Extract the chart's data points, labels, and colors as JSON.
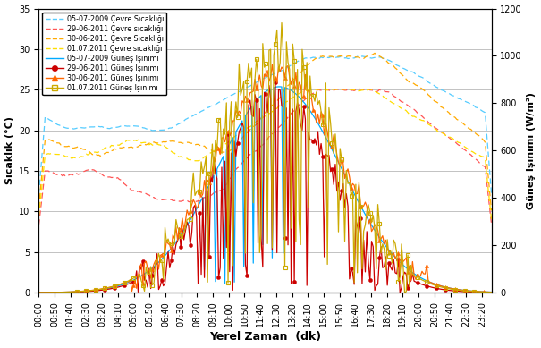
{
  "xlabel": "Yerel Zaman  (dk)",
  "ylabel_left": "Sıcaklık (°C)",
  "ylabel_right": "Güneş Işınımı (W/m²)",
  "ylim_left": [
    0,
    35
  ],
  "ylim_right": [
    0,
    1200
  ],
  "yticks_left": [
    0,
    5,
    10,
    15,
    20,
    25,
    30,
    35
  ],
  "yticks_right": [
    0,
    200,
    400,
    600,
    800,
    1000,
    1200
  ],
  "time_labels": [
    "00:00",
    "00:50",
    "01:40",
    "02:30",
    "03:20",
    "04:10",
    "05:00",
    "05:50",
    "06:40",
    "07:30",
    "08:20",
    "09:10",
    "10:00",
    "10:50",
    "11:40",
    "12:30",
    "13:20",
    "14:10",
    "15:00",
    "15:50",
    "16:40",
    "17:30",
    "18:20",
    "19:10",
    "20:00",
    "20:50",
    "21:40",
    "22:30",
    "23:20"
  ],
  "background_color": "#FFFFFF",
  "grid_color": "#AAAAAA",
  "colors": {
    "c2009": "#55CCFF",
    "c2011_29": "#FF5555",
    "c2011_30": "#FFAA00",
    "c2011_01": "#FFDD00",
    "s2009": "#00AAFF",
    "s2011_29": "#CC0000",
    "s2011_30": "#FF6600",
    "s2011_01": "#CCAA00"
  }
}
